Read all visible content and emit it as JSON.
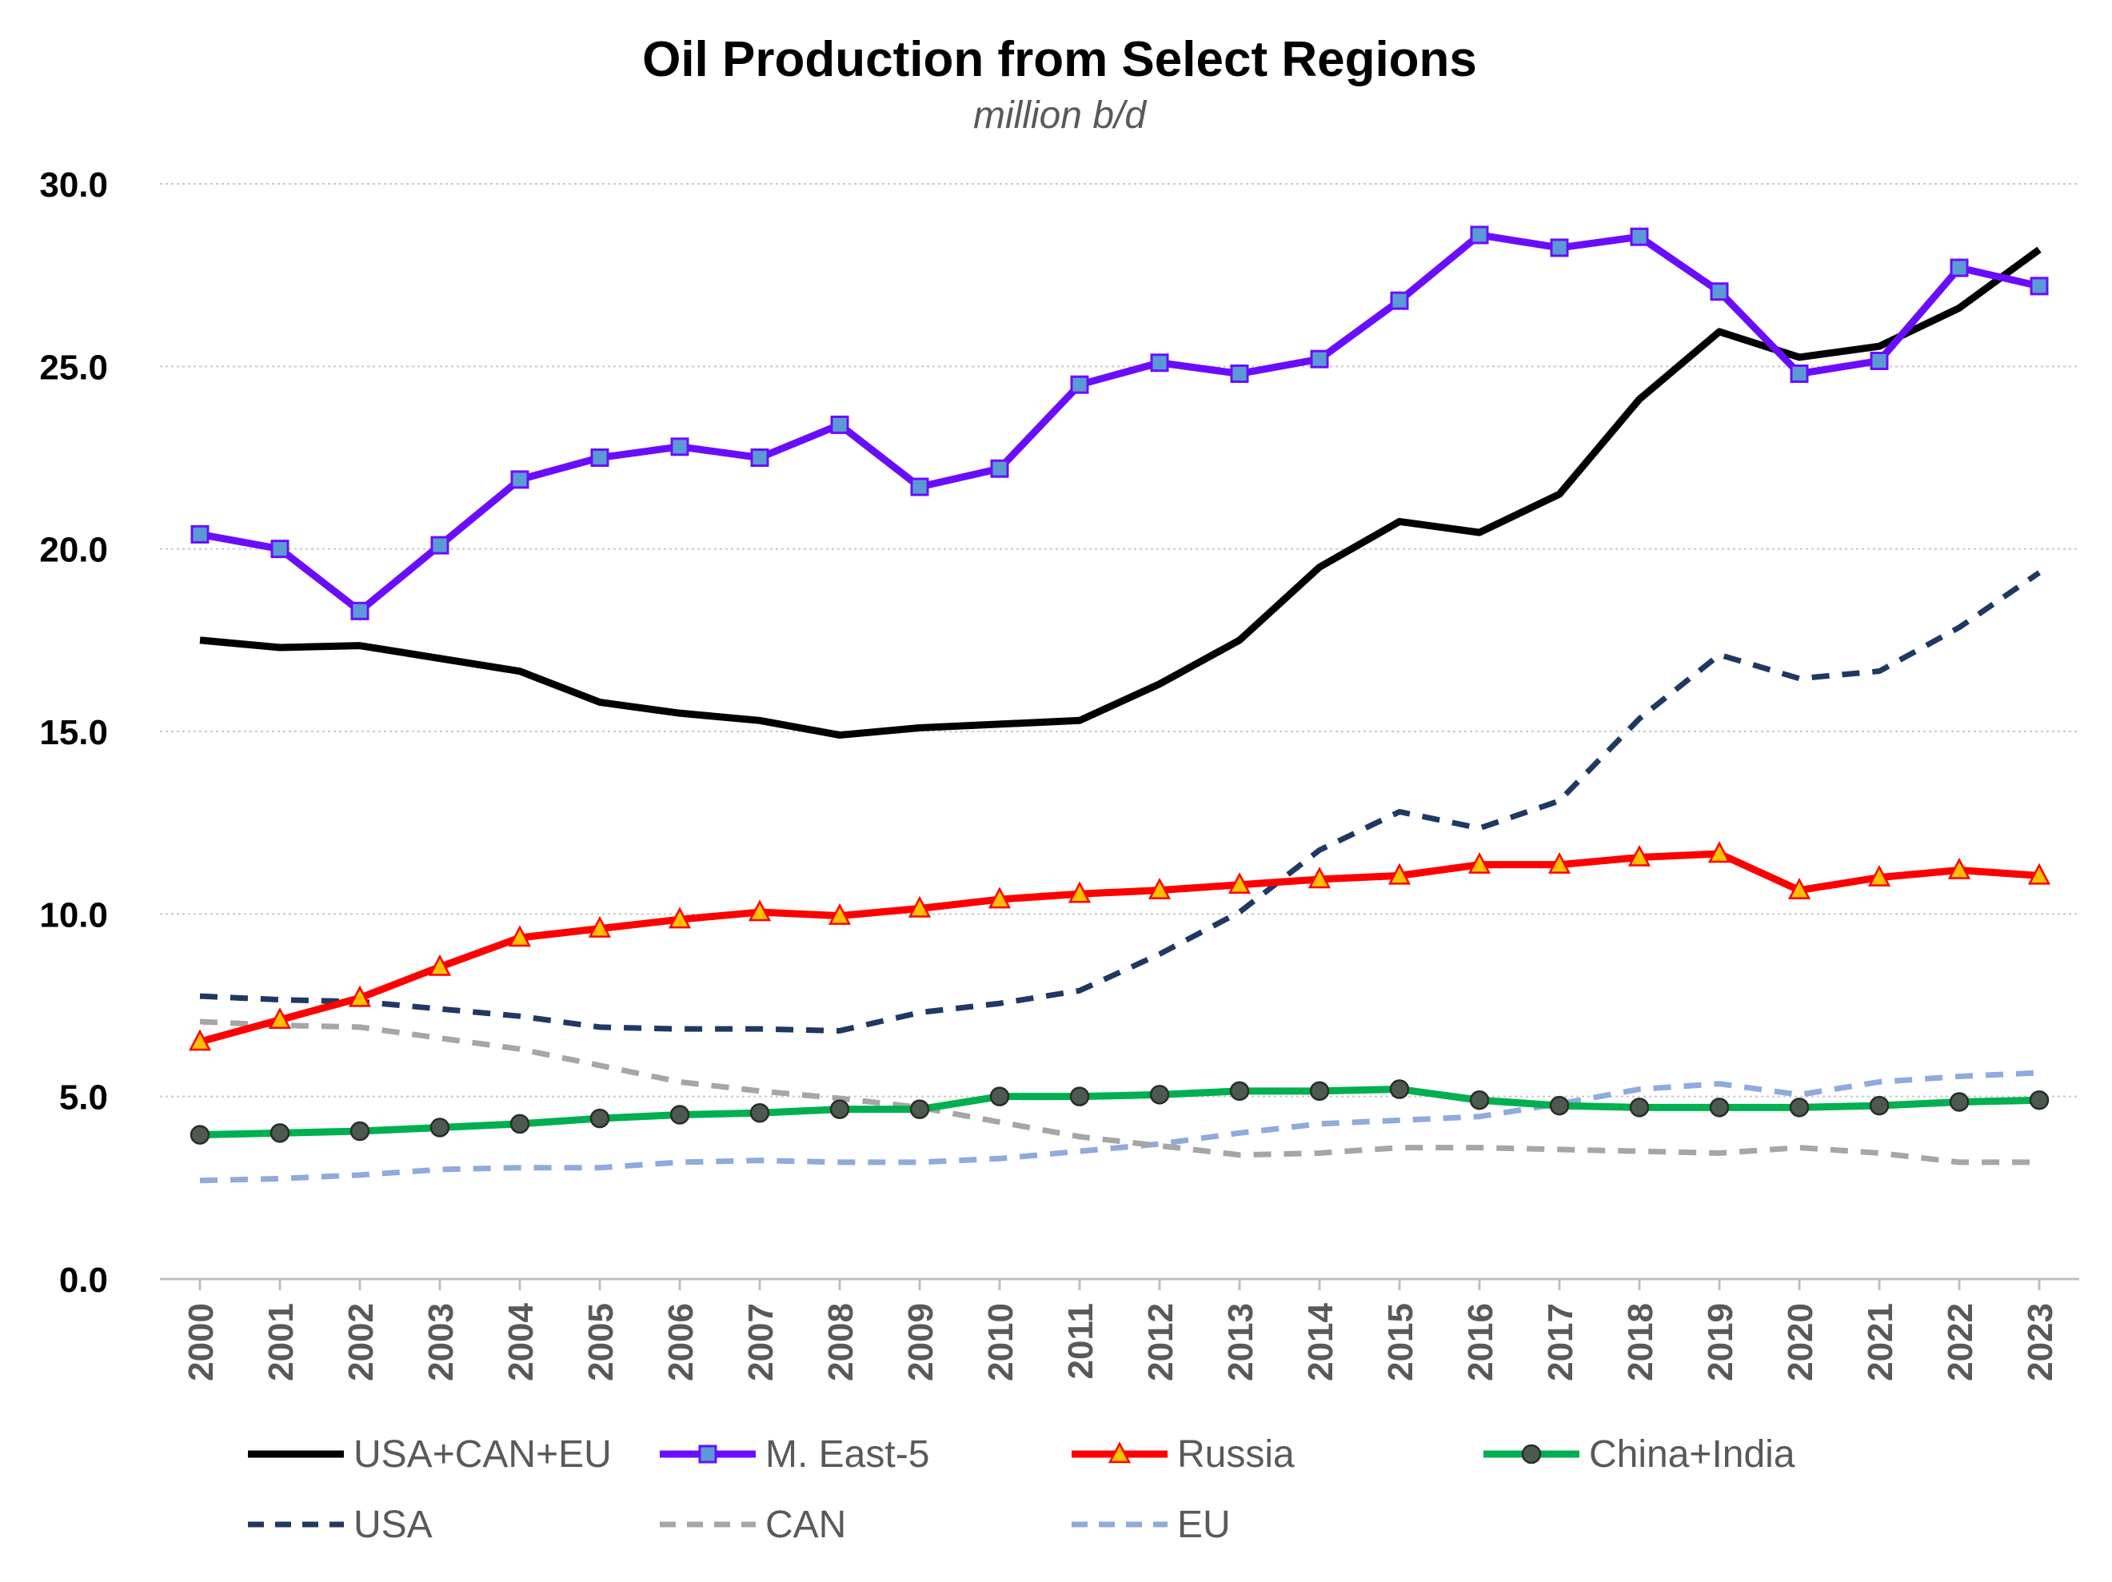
{
  "chart_data": {
    "type": "line",
    "title": "Oil Production from Select Regions",
    "subtitle": "million b/d",
    "xlabel": "",
    "ylabel": "",
    "ylim": [
      0,
      30
    ],
    "y_ticks": [
      "0.0",
      "5.0",
      "10.0",
      "15.0",
      "20.0",
      "25.0",
      "30.0"
    ],
    "y_tick_values": [
      0,
      5,
      10,
      15,
      20,
      25,
      30
    ],
    "grid": "horizontal dotted",
    "legend_position": "bottom",
    "x": [
      "2000",
      "2001",
      "2002",
      "2003",
      "2004",
      "2005",
      "2006",
      "2007",
      "2008",
      "2009",
      "2010",
      "2011",
      "2012",
      "2013",
      "2014",
      "2015",
      "2016",
      "2017",
      "2018",
      "2019",
      "2020",
      "2021",
      "2022",
      "2023"
    ],
    "series": [
      {
        "name": "USA+CAN+EU",
        "color": "#000000",
        "dash": "solid",
        "marker": "none",
        "values": [
          17.5,
          17.3,
          17.35,
          17.0,
          16.65,
          15.8,
          15.5,
          15.3,
          14.9,
          15.1,
          15.2,
          15.3,
          16.3,
          17.5,
          19.5,
          20.75,
          20.45,
          21.5,
          24.1,
          25.95,
          25.25,
          25.55,
          26.6,
          28.2
        ]
      },
      {
        "name": "M. East-5",
        "color": "#6a0dff",
        "dash": "solid",
        "marker": "square",
        "marker_color": "#5b9bd5",
        "values": [
          20.4,
          20.0,
          18.3,
          20.1,
          21.9,
          22.5,
          22.8,
          22.5,
          23.4,
          21.7,
          22.2,
          24.5,
          25.1,
          24.8,
          25.2,
          26.8,
          28.6,
          28.25,
          28.55,
          27.05,
          24.8,
          25.15,
          27.7,
          27.2
        ]
      },
      {
        "name": "Russia",
        "color": "#ff0000",
        "dash": "solid",
        "marker": "triangle",
        "marker_color": "#ffc000",
        "values": [
          6.5,
          7.1,
          7.7,
          8.55,
          9.35,
          9.6,
          9.85,
          10.05,
          9.95,
          10.15,
          10.4,
          10.55,
          10.65,
          10.8,
          10.95,
          11.05,
          11.35,
          11.35,
          11.55,
          11.65,
          10.65,
          11.0,
          11.2,
          11.05
        ]
      },
      {
        "name": "China+India",
        "color": "#00b050",
        "dash": "solid",
        "marker": "circle",
        "marker_color": "#4d5a4f",
        "values": [
          3.95,
          4.0,
          4.05,
          4.15,
          4.25,
          4.4,
          4.5,
          4.55,
          4.65,
          4.65,
          5.0,
          5.0,
          5.05,
          5.15,
          5.15,
          5.2,
          4.9,
          4.75,
          4.7,
          4.7,
          4.7,
          4.75,
          4.85,
          4.9
        ]
      },
      {
        "name": "USA",
        "color": "#1f3864",
        "dash": "dashed",
        "marker": "none",
        "values": [
          7.75,
          7.65,
          7.6,
          7.4,
          7.2,
          6.9,
          6.85,
          6.85,
          6.8,
          7.3,
          7.55,
          7.9,
          8.9,
          10.05,
          11.75,
          12.8,
          12.35,
          13.1,
          15.35,
          17.1,
          16.45,
          16.65,
          17.85,
          19.35
        ]
      },
      {
        "name": "CAN",
        "color": "#a6a6a6",
        "dash": "dashed",
        "marker": "none",
        "values": [
          7.05,
          6.95,
          6.9,
          6.6,
          6.3,
          5.85,
          5.4,
          5.15,
          4.95,
          4.7,
          4.3,
          3.9,
          3.65,
          3.4,
          3.45,
          3.6,
          3.6,
          3.55,
          3.5,
          3.45,
          3.6,
          3.45,
          3.2,
          3.2
        ]
      },
      {
        "name": "EU",
        "color": "#8faadc",
        "dash": "dashed",
        "marker": "none",
        "values": [
          2.7,
          2.75,
          2.85,
          3.0,
          3.05,
          3.05,
          3.2,
          3.25,
          3.2,
          3.2,
          3.3,
          3.5,
          3.7,
          4.0,
          4.25,
          4.35,
          4.45,
          4.8,
          5.2,
          5.35,
          5.05,
          5.4,
          5.55,
          5.65
        ]
      }
    ]
  }
}
